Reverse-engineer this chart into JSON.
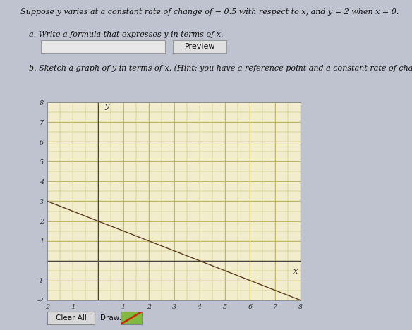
{
  "title_text": "Suppose y varies at a constant rate of change of − 0.5 with respect to x, and y = 2 when x = 0.",
  "part_a_text": "a. Write a formula that expresses y in terms of x.",
  "part_b_text": "b. Sketch a graph of y in terms of x. (Hint: you have a reference point and a constant rate of change.)",
  "preview_button_text": "Preview",
  "clear_all_text": "Clear All",
  "draw_text": "Draw:",
  "slope": -0.5,
  "intercept": 2,
  "x_min": -2,
  "x_max": 8,
  "y_min": -2,
  "y_max": 8,
  "grid_color": "#b8b060",
  "grid_bg": "#f2edcc",
  "line_color": "#5a4020",
  "page_bg": "#bfc3cf",
  "text_color": "#111111",
  "input_box_color": "#e8e8e8",
  "preview_btn_color": "#e0e0e0",
  "clear_all_btn_color": "#d8d8d8",
  "draw_btn_color": "#80b840"
}
